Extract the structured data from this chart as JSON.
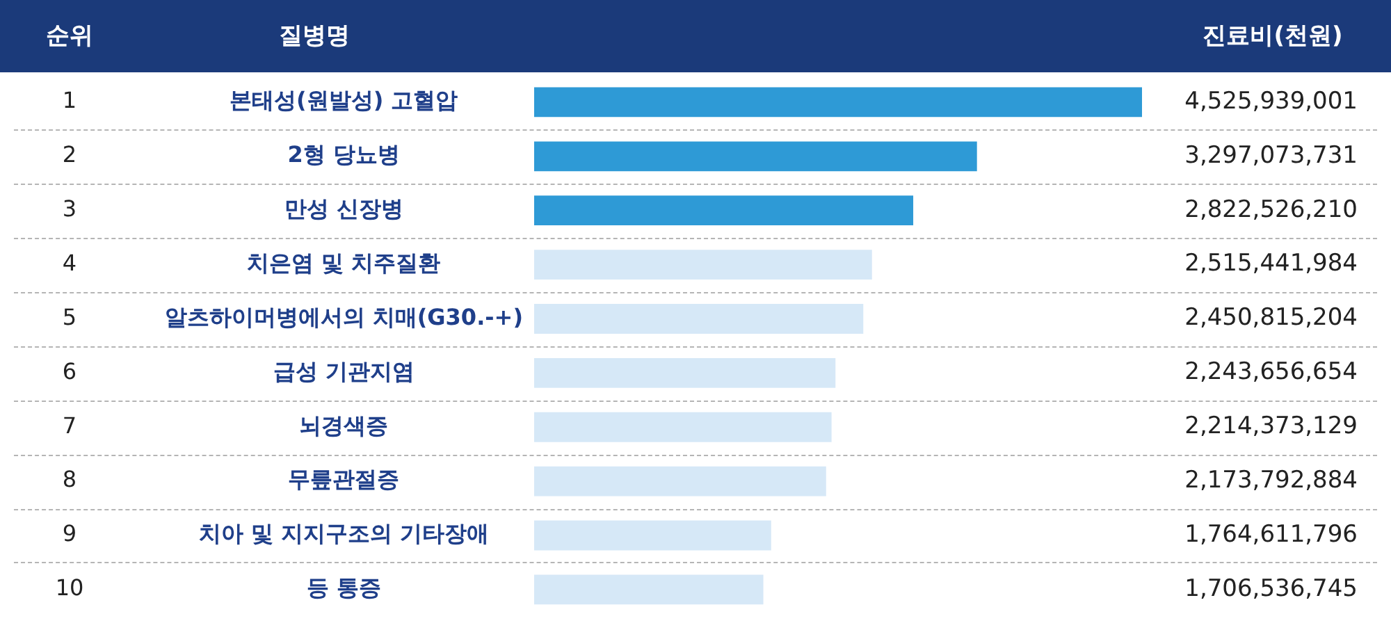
{
  "chart_data": {
    "type": "bar",
    "orientation": "horizontal",
    "xlabel": "진료비(천원)",
    "ylabel": "질병명",
    "categories": [
      "본태성(원발성) 고혈압",
      "2형 당뇨병",
      "만성 신장병",
      "치은염 및 치주질환",
      "알츠하이머병에서의 치매(G30.-+)",
      "급성 기관지염",
      "뇌경색증",
      "무릎관절증",
      "치아 및 지지구조의 기타장애",
      "등 통증"
    ],
    "values": [
      4525939001,
      3297073731,
      2822526210,
      2515441984,
      2450815204,
      2243656654,
      2214373129,
      2173792884,
      1764611796,
      1706536745
    ],
    "colors": [
      "#2e9ad6",
      "#2e9ad6",
      "#2e9ad6",
      "#d6e8f7",
      "#d6e8f7",
      "#d6e8f7",
      "#d6e8f7",
      "#d6e8f7",
      "#d6e8f7",
      "#d6e8f7"
    ],
    "value_labels": [
      "4,525,939,001",
      "3,297,073,731",
      "2,822,526,210",
      "2,515,441,984",
      "2,450,815,204",
      "2,243,656,654",
      "2,214,373,129",
      "2,173,792,884",
      "1,764,611,796",
      "1,706,536,745"
    ],
    "legend": false,
    "annotations": [
      "순위",
      "1",
      "2",
      "3",
      "4",
      "5",
      "6",
      "7",
      "8",
      "9",
      "10"
    ]
  }
}
